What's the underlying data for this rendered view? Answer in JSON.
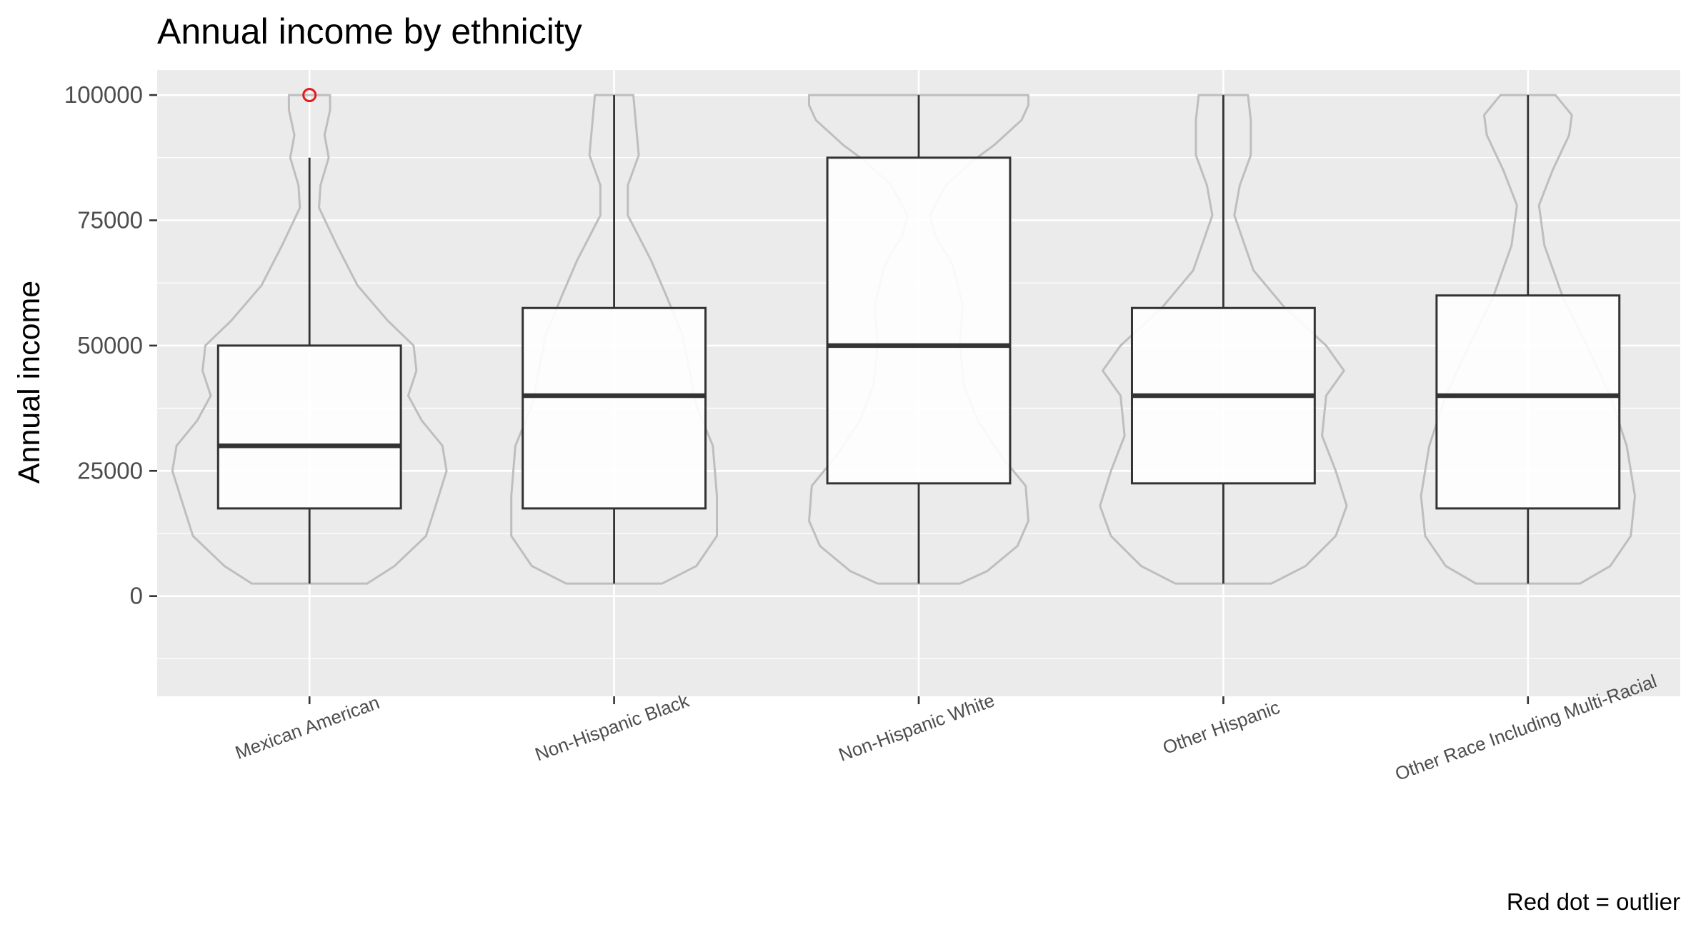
{
  "chart_data": {
    "type": "boxplot",
    "title": "Annual income by ethnicity",
    "xlabel": "",
    "ylabel": "Annual income",
    "caption": "Red dot = outlier",
    "ylim": [
      -20000,
      105000
    ],
    "yticks": [
      0,
      25000,
      50000,
      75000,
      100000
    ],
    "ytick_labels": [
      "0",
      "25000",
      "50000",
      "75000",
      "100000"
    ],
    "grid": true,
    "categories": [
      "Mexican American",
      "Non-Hispanic Black",
      "Non-Hispanic White",
      "Other Hispanic",
      "Other Race Including Multi-Racial"
    ],
    "boxes": [
      {
        "whisker_low": 2500,
        "q1": 17500,
        "median": 30000,
        "q3": 50000,
        "whisker_high": 87500,
        "outliers": [
          100000
        ]
      },
      {
        "whisker_low": 2500,
        "q1": 17500,
        "median": 40000,
        "q3": 57500,
        "whisker_high": 100000,
        "outliers": []
      },
      {
        "whisker_low": 2500,
        "q1": 22500,
        "median": 50000,
        "q3": 87500,
        "whisker_high": 100000,
        "outliers": []
      },
      {
        "whisker_low": 2500,
        "q1": 22500,
        "median": 40000,
        "q3": 57500,
        "whisker_high": 100000,
        "outliers": []
      },
      {
        "whisker_low": 2500,
        "q1": 17500,
        "median": 40000,
        "q3": 60000,
        "whisker_high": 100000,
        "outliers": []
      }
    ],
    "violins": [
      {
        "profile": [
          [
            2500,
            0.42
          ],
          [
            6000,
            0.62
          ],
          [
            12000,
            0.85
          ],
          [
            18000,
            0.92
          ],
          [
            25000,
            1.0
          ],
          [
            30000,
            0.97
          ],
          [
            35000,
            0.82
          ],
          [
            40000,
            0.72
          ],
          [
            45000,
            0.78
          ],
          [
            50000,
            0.76
          ],
          [
            55000,
            0.57
          ],
          [
            62000,
            0.35
          ],
          [
            70000,
            0.2
          ],
          [
            77500,
            0.07
          ],
          [
            82000,
            0.08
          ],
          [
            87500,
            0.14
          ],
          [
            92000,
            0.11
          ],
          [
            97000,
            0.15
          ],
          [
            100000,
            0.15
          ]
        ]
      },
      {
        "profile": [
          [
            2500,
            0.35
          ],
          [
            6000,
            0.6
          ],
          [
            12000,
            0.75
          ],
          [
            20000,
            0.75
          ],
          [
            30000,
            0.72
          ],
          [
            38000,
            0.6
          ],
          [
            45000,
            0.55
          ],
          [
            52000,
            0.5
          ],
          [
            60000,
            0.38
          ],
          [
            67000,
            0.27
          ],
          [
            76000,
            0.1
          ],
          [
            82000,
            0.1
          ],
          [
            88000,
            0.18
          ],
          [
            94000,
            0.16
          ],
          [
            100000,
            0.14
          ]
        ]
      },
      {
        "profile": [
          [
            2500,
            0.3
          ],
          [
            5000,
            0.5
          ],
          [
            10000,
            0.72
          ],
          [
            15000,
            0.8
          ],
          [
            22000,
            0.78
          ],
          [
            28000,
            0.6
          ],
          [
            35000,
            0.43
          ],
          [
            42000,
            0.33
          ],
          [
            50000,
            0.3
          ],
          [
            58000,
            0.32
          ],
          [
            66000,
            0.25
          ],
          [
            72000,
            0.12
          ],
          [
            76000,
            0.08
          ],
          [
            82000,
            0.2
          ],
          [
            87000,
            0.4
          ],
          [
            90000,
            0.55
          ],
          [
            95000,
            0.75
          ],
          [
            98000,
            0.8
          ],
          [
            100000,
            0.8
          ]
        ]
      },
      {
        "profile": [
          [
            2500,
            0.35
          ],
          [
            6000,
            0.6
          ],
          [
            12000,
            0.82
          ],
          [
            18000,
            0.9
          ],
          [
            25000,
            0.82
          ],
          [
            32000,
            0.72
          ],
          [
            40000,
            0.75
          ],
          [
            45000,
            0.88
          ],
          [
            50000,
            0.75
          ],
          [
            57500,
            0.45
          ],
          [
            65000,
            0.22
          ],
          [
            76000,
            0.08
          ],
          [
            82000,
            0.12
          ],
          [
            88000,
            0.2
          ],
          [
            95000,
            0.2
          ],
          [
            100000,
            0.18
          ]
        ]
      },
      {
        "profile": [
          [
            2500,
            0.38
          ],
          [
            6000,
            0.6
          ],
          [
            12000,
            0.75
          ],
          [
            20000,
            0.78
          ],
          [
            30000,
            0.72
          ],
          [
            40000,
            0.6
          ],
          [
            50000,
            0.43
          ],
          [
            60000,
            0.25
          ],
          [
            70000,
            0.12
          ],
          [
            78000,
            0.08
          ],
          [
            85000,
            0.18
          ],
          [
            92000,
            0.3
          ],
          [
            96000,
            0.32
          ],
          [
            100000,
            0.2
          ]
        ]
      }
    ],
    "colors": {
      "panel": "#ebebeb",
      "grid": "#ffffff",
      "box_fill": "#ffffff",
      "box_line": "#333333",
      "median_line": "#333333",
      "violin_line": "#bebebe",
      "outlier": "#e41a1c"
    }
  }
}
